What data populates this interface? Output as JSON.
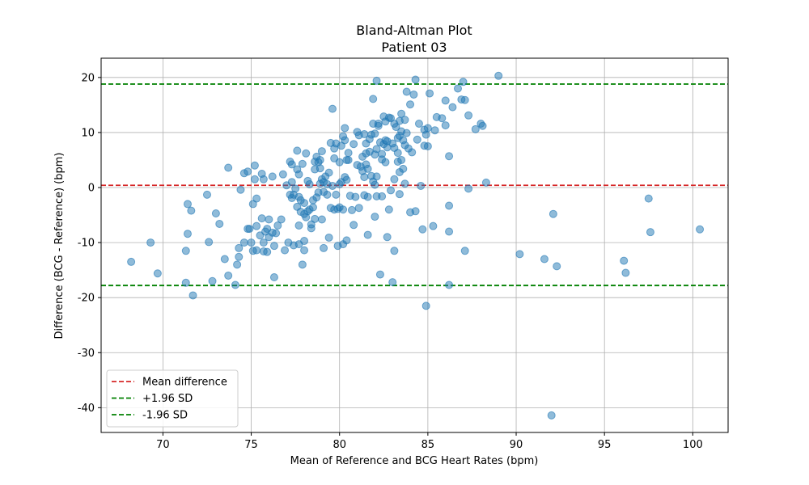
{
  "chart_data": {
    "type": "scatter",
    "title": "Bland-Altman Plot",
    "subtitle": "Patient 03",
    "xlabel": "Mean of Reference and BCG Heart Rates (bpm)",
    "ylabel": "Difference (BCG - Reference) (bpm)",
    "xlim": [
      66.5,
      102
    ],
    "ylim": [
      -44.5,
      23.5
    ],
    "xticks": [
      70,
      75,
      80,
      85,
      90,
      95,
      100
    ],
    "yticks": [
      -40,
      -30,
      -20,
      -10,
      0,
      10,
      20
    ],
    "grid": true,
    "legend_position": "lower-left",
    "point_color": "#1f77b4",
    "point_opacity": 0.5,
    "reference_lines": [
      {
        "label": "Mean difference",
        "y": 0.4,
        "color": "#d62728"
      },
      {
        "label": "+1.96 SD",
        "y": 18.8,
        "color": "#008000"
      },
      {
        "label": "-1.96 SD",
        "y": -17.8,
        "color": "#008000"
      }
    ],
    "points": [
      [
        68.2,
        -13.5
      ],
      [
        69.3,
        -10.0
      ],
      [
        69.7,
        -15.6
      ],
      [
        71.3,
        -17.3
      ],
      [
        71.3,
        -11.5
      ],
      [
        71.4,
        -8.4
      ],
      [
        71.4,
        -3.0
      ],
      [
        71.6,
        -4.2
      ],
      [
        71.7,
        -19.6
      ],
      [
        72.5,
        -1.3
      ],
      [
        72.6,
        -9.9
      ],
      [
        72.8,
        -17.0
      ],
      [
        73.0,
        -4.7
      ],
      [
        73.2,
        -6.6
      ],
      [
        73.5,
        -13.0
      ],
      [
        73.7,
        -16.0
      ],
      [
        73.7,
        3.6
      ],
      [
        74.1,
        -17.7
      ],
      [
        74.2,
        -14.0
      ],
      [
        74.3,
        -11.0
      ],
      [
        74.3,
        -12.6
      ],
      [
        74.4,
        -0.4
      ],
      [
        74.6,
        2.6
      ],
      [
        74.6,
        -10.0
      ],
      [
        74.8,
        2.9
      ],
      [
        74.8,
        -7.5
      ],
      [
        74.9,
        -7.5
      ],
      [
        75.0,
        -10.0
      ],
      [
        75.1,
        -11.5
      ],
      [
        75.1,
        -3.0
      ],
      [
        75.2,
        1.5
      ],
      [
        75.2,
        4.0
      ],
      [
        75.3,
        -11.4
      ],
      [
        75.3,
        -2.0
      ],
      [
        75.3,
        -7.0
      ],
      [
        75.5,
        -8.7
      ],
      [
        75.6,
        2.5
      ],
      [
        75.6,
        -5.6
      ],
      [
        75.7,
        1.5
      ],
      [
        75.7,
        -10.0
      ],
      [
        75.7,
        -11.6
      ],
      [
        75.8,
        -8.0
      ],
      [
        75.9,
        -7.5
      ],
      [
        75.9,
        -11.7
      ],
      [
        76.0,
        -9.0
      ],
      [
        76.0,
        -5.8
      ],
      [
        76.2,
        2.0
      ],
      [
        76.2,
        -8.2
      ],
      [
        76.3,
        -10.6
      ],
      [
        76.3,
        -16.3
      ],
      [
        76.4,
        -8.3
      ],
      [
        76.5,
        -6.9
      ],
      [
        76.7,
        -5.8
      ],
      [
        76.8,
        2.4
      ],
      [
        76.9,
        -11.4
      ],
      [
        77.0,
        0.4
      ],
      [
        77.1,
        -10.0
      ],
      [
        77.2,
        4.7
      ],
      [
        77.2,
        -1.3
      ],
      [
        77.3,
        4.2
      ],
      [
        77.3,
        1.0
      ],
      [
        77.3,
        -1.9
      ],
      [
        77.4,
        -1.3
      ],
      [
        77.4,
        -10.5
      ],
      [
        77.5,
        -0.2
      ],
      [
        77.6,
        3.3
      ],
      [
        77.6,
        6.7
      ],
      [
        77.6,
        -3.5
      ],
      [
        77.7,
        2.4
      ],
      [
        77.7,
        -6.9
      ],
      [
        77.7,
        -10.3
      ],
      [
        77.7,
        -1.7
      ],
      [
        77.8,
        -2.3
      ],
      [
        77.8,
        -4.4
      ],
      [
        77.9,
        -14.0
      ],
      [
        77.9,
        4.3
      ],
      [
        78.0,
        -4.8
      ],
      [
        78.0,
        -2.8
      ],
      [
        78.0,
        -9.7
      ],
      [
        78.0,
        -11.4
      ],
      [
        78.1,
        6.2
      ],
      [
        78.1,
        -5.4
      ],
      [
        78.2,
        -4.3
      ],
      [
        78.2,
        1.2
      ],
      [
        78.3,
        0.6
      ],
      [
        78.3,
        -4.0
      ],
      [
        78.4,
        -6.7
      ],
      [
        78.4,
        -7.4
      ],
      [
        78.5,
        -3.6
      ],
      [
        78.5,
        -2.3
      ],
      [
        78.6,
        3.3
      ],
      [
        78.6,
        4.7
      ],
      [
        78.6,
        -5.7
      ],
      [
        78.7,
        5.6
      ],
      [
        78.7,
        -1.8
      ],
      [
        78.8,
        -0.9
      ],
      [
        78.8,
        4.6
      ],
      [
        78.9,
        0.7
      ],
      [
        78.9,
        3.5
      ],
      [
        78.9,
        5.0
      ],
      [
        79.0,
        6.6
      ],
      [
        79.0,
        1.5
      ],
      [
        79.0,
        -5.8
      ],
      [
        79.1,
        -11.0
      ],
      [
        79.1,
        -0.8
      ],
      [
        79.1,
        1.0
      ],
      [
        79.2,
        2.0
      ],
      [
        79.3,
        0.6
      ],
      [
        79.3,
        -1.3
      ],
      [
        79.4,
        2.7
      ],
      [
        79.4,
        -9.1
      ],
      [
        79.5,
        8.1
      ],
      [
        79.5,
        -3.7
      ],
      [
        79.6,
        14.3
      ],
      [
        79.6,
        0.3
      ],
      [
        79.7,
        7.1
      ],
      [
        79.7,
        5.3
      ],
      [
        79.7,
        -4.0
      ],
      [
        79.8,
        8.0
      ],
      [
        79.8,
        -1.3
      ],
      [
        79.9,
        -3.9
      ],
      [
        79.9,
        -10.6
      ],
      [
        80.0,
        0.6
      ],
      [
        80.0,
        -3.6
      ],
      [
        80.0,
        4.6
      ],
      [
        80.1,
        7.6
      ],
      [
        80.1,
        1.0
      ],
      [
        80.2,
        9.3
      ],
      [
        80.2,
        -4.0
      ],
      [
        80.2,
        -10.3
      ],
      [
        80.3,
        10.8
      ],
      [
        80.3,
        8.6
      ],
      [
        80.3,
        1.9
      ],
      [
        80.4,
        5.0
      ],
      [
        80.4,
        1.4
      ],
      [
        80.4,
        -9.6
      ],
      [
        80.5,
        6.3
      ],
      [
        80.5,
        5.0
      ],
      [
        80.6,
        -1.5
      ],
      [
        80.7,
        -4.1
      ],
      [
        80.8,
        7.9
      ],
      [
        80.8,
        -6.8
      ],
      [
        80.9,
        -1.7
      ],
      [
        81.0,
        10.1
      ],
      [
        81.0,
        4.1
      ],
      [
        81.1,
        9.5
      ],
      [
        81.1,
        -3.7
      ],
      [
        81.2,
        3.8
      ],
      [
        81.3,
        5.6
      ],
      [
        81.3,
        3.0
      ],
      [
        81.4,
        -1.4
      ],
      [
        81.4,
        9.7
      ],
      [
        81.4,
        1.9
      ],
      [
        81.5,
        6.2
      ],
      [
        81.5,
        8.0
      ],
      [
        81.5,
        4.2
      ],
      [
        81.6,
        -1.7
      ],
      [
        81.6,
        3.4
      ],
      [
        81.6,
        -8.6
      ],
      [
        81.7,
        6.5
      ],
      [
        81.7,
        8.8
      ],
      [
        81.8,
        2.1
      ],
      [
        81.8,
        9.6
      ],
      [
        81.9,
        16.1
      ],
      [
        81.9,
        11.6
      ],
      [
        81.9,
        1.1
      ],
      [
        82.0,
        0.5
      ],
      [
        82.0,
        6.0
      ],
      [
        82.0,
        -5.3
      ],
      [
        82.0,
        9.8
      ],
      [
        82.1,
        19.4
      ],
      [
        82.1,
        2.0
      ],
      [
        82.1,
        7.0
      ],
      [
        82.1,
        -1.6
      ],
      [
        82.2,
        11.2
      ],
      [
        82.2,
        11.6
      ],
      [
        82.3,
        -15.8
      ],
      [
        82.3,
        8.2
      ],
      [
        82.4,
        6.1
      ],
      [
        82.4,
        5.1
      ],
      [
        82.4,
        -1.6
      ],
      [
        82.5,
        12.9
      ],
      [
        82.5,
        7.9
      ],
      [
        82.6,
        12.0
      ],
      [
        82.6,
        8.6
      ],
      [
        82.6,
        4.6
      ],
      [
        82.7,
        -9.0
      ],
      [
        82.7,
        7.3
      ],
      [
        82.7,
        8.4
      ],
      [
        82.8,
        12.7
      ],
      [
        82.8,
        -4.0
      ],
      [
        82.9,
        -0.5
      ],
      [
        82.9,
        12.6
      ],
      [
        83.0,
        -17.2
      ],
      [
        83.0,
        8.0
      ],
      [
        83.1,
        11.6
      ],
      [
        83.1,
        7.2
      ],
      [
        83.1,
        1.5
      ],
      [
        83.1,
        -11.5
      ],
      [
        83.2,
        11.0
      ],
      [
        83.3,
        4.7
      ],
      [
        83.3,
        9.0
      ],
      [
        83.3,
        6.3
      ],
      [
        83.4,
        -1.2
      ],
      [
        83.4,
        12.1
      ],
      [
        83.4,
        2.8
      ],
      [
        83.4,
        9.4
      ],
      [
        83.5,
        13.4
      ],
      [
        83.5,
        5.0
      ],
      [
        83.5,
        10.2
      ],
      [
        83.6,
        8.6
      ],
      [
        83.6,
        3.4
      ],
      [
        83.7,
        7.7
      ],
      [
        83.7,
        0.7
      ],
      [
        83.7,
        12.3
      ],
      [
        83.8,
        17.4
      ],
      [
        83.8,
        9.9
      ],
      [
        83.9,
        7.1
      ],
      [
        84.0,
        15.1
      ],
      [
        84.0,
        -4.5
      ],
      [
        84.1,
        6.4
      ],
      [
        84.2,
        16.9
      ],
      [
        84.3,
        -4.3
      ],
      [
        84.3,
        19.6
      ],
      [
        84.4,
        8.7
      ],
      [
        84.5,
        11.6
      ],
      [
        84.6,
        0.3
      ],
      [
        84.7,
        -7.6
      ],
      [
        84.8,
        7.6
      ],
      [
        84.8,
        10.5
      ],
      [
        84.9,
        -21.5
      ],
      [
        84.9,
        9.6
      ],
      [
        85.0,
        7.5
      ],
      [
        85.0,
        10.8
      ],
      [
        85.1,
        17.1
      ],
      [
        85.3,
        -7.0
      ],
      [
        85.4,
        10.4
      ],
      [
        85.5,
        12.8
      ],
      [
        85.8,
        12.6
      ],
      [
        86.0,
        15.8
      ],
      [
        86.0,
        11.3
      ],
      [
        86.2,
        5.7
      ],
      [
        86.2,
        -3.3
      ],
      [
        86.2,
        -8.0
      ],
      [
        86.2,
        -17.7
      ],
      [
        86.4,
        14.6
      ],
      [
        86.7,
        18.0
      ],
      [
        86.9,
        16.0
      ],
      [
        87.0,
        19.2
      ],
      [
        87.1,
        15.9
      ],
      [
        87.1,
        -11.5
      ],
      [
        87.3,
        -0.2
      ],
      [
        87.3,
        13.1
      ],
      [
        87.7,
        10.6
      ],
      [
        88.0,
        11.6
      ],
      [
        88.1,
        11.2
      ],
      [
        88.3,
        0.9
      ],
      [
        89.0,
        20.3
      ],
      [
        90.2,
        -12.1
      ],
      [
        91.6,
        -13.0
      ],
      [
        92.0,
        -41.4
      ],
      [
        92.1,
        -4.8
      ],
      [
        92.3,
        -14.3
      ],
      [
        96.1,
        -13.3
      ],
      [
        96.2,
        -15.5
      ],
      [
        97.5,
        -2.0
      ],
      [
        97.6,
        -8.1
      ],
      [
        100.4,
        -7.6
      ]
    ]
  }
}
